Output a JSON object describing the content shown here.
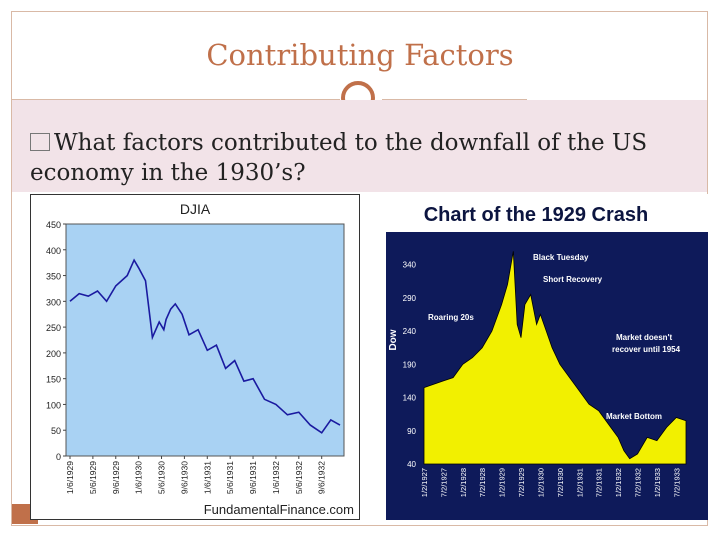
{
  "slide": {
    "title": "Contributing Factors",
    "bullet": "What factors contributed to the downfall of the US economy in the 1930’s?"
  },
  "colors": {
    "accent": "#c0704a",
    "band": "#f2e3e8",
    "djia_plot_bg": "#a9d2f3",
    "djia_line": "#1a1aa0",
    "crash_bg": "#0e1a5a",
    "crash_fill": "#f2f000"
  },
  "chart_data": [
    {
      "type": "line",
      "title": "DJIA",
      "xlabel": "",
      "ylabel": "",
      "ylim": [
        0,
        450
      ],
      "yticks": [
        0,
        50,
        100,
        150,
        200,
        250,
        300,
        350,
        400,
        450
      ],
      "xtick_labels": [
        "1/6/1929",
        "5/6/1929",
        "9/6/1929",
        "1/6/1930",
        "5/6/1930",
        "9/6/1930",
        "1/6/1931",
        "5/6/1931",
        "9/6/1931",
        "1/6/1932",
        "5/6/1932",
        "9/6/1932"
      ],
      "footer": "FundamentalFinance.com",
      "series": [
        {
          "x": [
            0,
            0.4,
            0.8,
            1.2,
            1.6,
            2,
            2.5,
            2.8,
            3,
            3.3,
            3.6,
            3.9,
            4.1,
            4.2,
            4.4,
            4.6,
            4.9,
            5.2,
            5.6,
            6,
            6.4,
            6.8,
            7.2,
            7.6,
            8,
            8.5,
            9,
            9.5,
            10,
            10.5,
            11,
            11.4,
            11.8
          ],
          "y": [
            300,
            315,
            310,
            320,
            300,
            330,
            350,
            380,
            365,
            340,
            230,
            260,
            245,
            265,
            285,
            295,
            275,
            235,
            245,
            205,
            215,
            170,
            185,
            145,
            150,
            110,
            100,
            80,
            85,
            60,
            45,
            70,
            60
          ]
        }
      ]
    },
    {
      "type": "area",
      "title": "Chart of the 1929 Crash",
      "ylabel": "Dow",
      "yticks": [
        40,
        90,
        140,
        190,
        240,
        290,
        340
      ],
      "ylim": [
        40,
        380
      ],
      "xtick_labels": [
        "1/2/1927",
        "7/2/1927",
        "1/2/1928",
        "7/2/1928",
        "1/2/1929",
        "7/2/1929",
        "1/2/1930",
        "7/2/1930",
        "1/2/1931",
        "7/2/1931",
        "1/2/1932",
        "7/2/1932",
        "1/2/1933",
        "7/2/1933"
      ],
      "annotations": [
        "Black Tuesday",
        "Short Recovery",
        "Roaring 20s",
        "Market doesn't recover until 1954",
        "Market Bottom"
      ],
      "series": [
        {
          "x": [
            0,
            0.5,
            1,
            1.5,
            2,
            2.5,
            3,
            3.5,
            4,
            4.3,
            4.6,
            4.8,
            5,
            5.2,
            5.5,
            5.8,
            6,
            6.3,
            6.6,
            7,
            7.5,
            8,
            8.5,
            9,
            9.5,
            10,
            10.3,
            10.6,
            11,
            11.5,
            12,
            12.5,
            13,
            13.5
          ],
          "y": [
            155,
            160,
            165,
            170,
            190,
            200,
            215,
            240,
            280,
            310,
            360,
            250,
            230,
            280,
            295,
            250,
            265,
            240,
            215,
            190,
            170,
            150,
            130,
            120,
            100,
            80,
            60,
            48,
            55,
            80,
            75,
            95,
            110,
            105
          ]
        }
      ]
    }
  ]
}
